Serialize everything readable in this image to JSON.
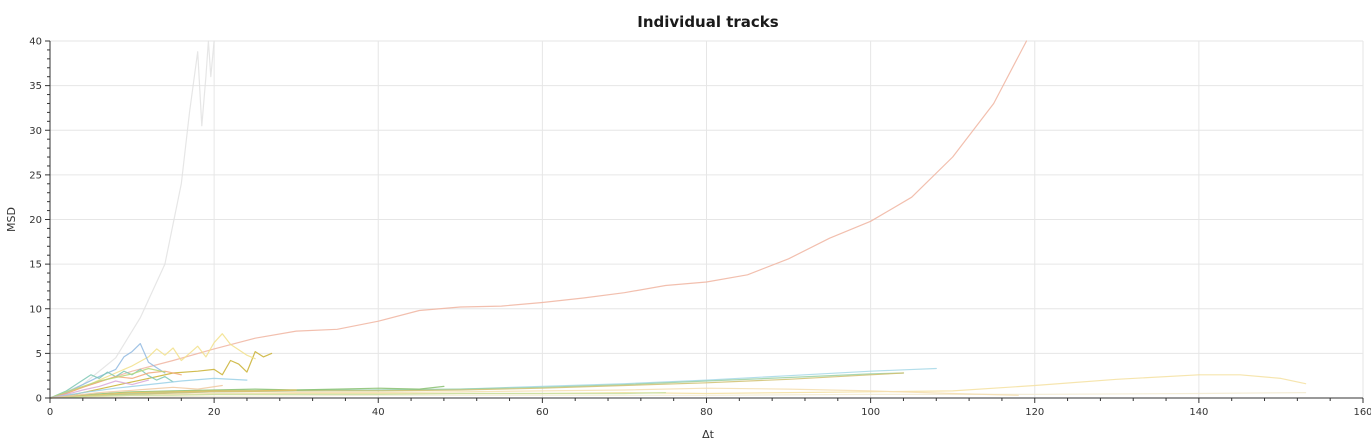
{
  "chart_data": {
    "type": "line",
    "title": "Individual tracks",
    "xlabel": "Δt",
    "ylabel": "MSD",
    "xlim": [
      0,
      160
    ],
    "ylim": [
      0,
      40
    ],
    "xticks": [
      0,
      20,
      40,
      60,
      80,
      100,
      120,
      140,
      160
    ],
    "yticks": [
      0,
      5,
      10,
      15,
      20,
      25,
      30,
      35,
      40
    ],
    "grid": true,
    "legend": "none",
    "series": [
      {
        "color": "#f0b4a0",
        "x": [
          0,
          5,
          10,
          15,
          20,
          25,
          30,
          35,
          40,
          45,
          50,
          55,
          60,
          65,
          70,
          75,
          80,
          85,
          90,
          95,
          100,
          105,
          110,
          115,
          119
        ],
        "y": [
          0,
          1.5,
          3.0,
          4.2,
          5.5,
          6.7,
          7.5,
          7.7,
          8.6,
          9.8,
          10.2,
          10.3,
          10.7,
          11.2,
          11.8,
          12.6,
          13.0,
          13.8,
          15.6,
          17.9,
          19.8,
          22.5,
          27.0,
          33.0,
          40.0
        ]
      },
      {
        "color": "#e2e2e2",
        "x": [
          0,
          4,
          8,
          11,
          14,
          16,
          17,
          18,
          18.5,
          19,
          19.3,
          19.6,
          20
        ],
        "y": [
          0,
          1.5,
          4.5,
          9.0,
          15.0,
          24.0,
          32.0,
          38.8,
          30.5,
          36.0,
          40.0,
          36.0,
          40.0
        ]
      },
      {
        "color": "#f5e1a0",
        "x": [
          0,
          10,
          20,
          30,
          40,
          50,
          60,
          70,
          80,
          90,
          100,
          110,
          120,
          130,
          140,
          145,
          150,
          153
        ],
        "y": [
          0,
          0.3,
          0.4,
          0.5,
          0.5,
          0.5,
          0.5,
          0.6,
          0.5,
          0.6,
          0.7,
          0.8,
          1.4,
          2.1,
          2.6,
          2.6,
          2.2,
          1.6
        ]
      },
      {
        "color": "#f2ead0",
        "x": [
          0,
          20,
          40,
          60,
          80,
          100,
          120,
          140,
          153
        ],
        "y": [
          0,
          0.2,
          0.3,
          0.3,
          0.3,
          0.4,
          0.4,
          0.5,
          0.6
        ]
      },
      {
        "color": "#a6d8e8",
        "x": [
          0,
          10,
          20,
          30,
          40,
          50,
          60,
          70,
          80,
          90,
          100,
          108
        ],
        "y": [
          0,
          0.4,
          0.7,
          0.8,
          0.9,
          1.0,
          1.3,
          1.6,
          2.0,
          2.5,
          3.0,
          3.3
        ]
      },
      {
        "color": "#9bd0a5",
        "x": [
          0,
          10,
          20,
          30,
          40,
          50,
          60,
          70,
          80,
          90,
          100,
          104
        ],
        "y": [
          0,
          0.5,
          0.8,
          0.9,
          0.9,
          1.0,
          1.2,
          1.5,
          1.9,
          2.3,
          2.7,
          2.8
        ]
      },
      {
        "color": "#d0c070",
        "x": [
          0,
          10,
          20,
          30,
          40,
          50,
          60,
          70,
          80,
          90,
          100,
          104
        ],
        "y": [
          0,
          0.4,
          0.7,
          0.8,
          0.8,
          0.9,
          1.1,
          1.4,
          1.7,
          2.1,
          2.6,
          2.8
        ]
      },
      {
        "color": "#f5deb0",
        "x": [
          0,
          10,
          20,
          30,
          40,
          50,
          60,
          70,
          80,
          90,
          100,
          110,
          118
        ],
        "y": [
          0,
          0.3,
          0.5,
          0.6,
          0.6,
          0.7,
          0.8,
          0.9,
          1.1,
          1.0,
          0.8,
          0.5,
          0.3
        ]
      },
      {
        "color": "#c9b030",
        "x": [
          0,
          3,
          6,
          9,
          12,
          15,
          18,
          20,
          21,
          22,
          23,
          24,
          25,
          26,
          27
        ],
        "y": [
          0,
          0.4,
          1.0,
          1.6,
          2.2,
          2.8,
          3.0,
          3.2,
          2.6,
          4.2,
          3.8,
          2.9,
          5.2,
          4.6,
          5.0
        ]
      },
      {
        "color": "#f2e08a",
        "x": [
          0,
          2,
          4,
          6,
          8,
          10,
          12,
          13,
          14,
          15,
          16,
          17,
          18,
          19,
          20,
          21,
          22,
          23,
          24,
          25
        ],
        "y": [
          0,
          0.5,
          1.2,
          2.0,
          2.8,
          3.6,
          4.6,
          5.5,
          4.8,
          5.6,
          4.2,
          5.0,
          5.8,
          4.6,
          6.2,
          7.2,
          6.0,
          5.4,
          4.8,
          4.4
        ]
      },
      {
        "color": "#8fb8e0",
        "x": [
          0,
          2,
          4,
          6,
          8,
          9,
          10,
          11,
          12,
          13,
          14
        ],
        "y": [
          0,
          0.6,
          1.5,
          2.4,
          3.2,
          4.6,
          5.2,
          6.1,
          4.0,
          3.4,
          2.8
        ]
      },
      {
        "color": "#7cc7b4",
        "x": [
          0,
          2,
          3,
          4,
          5,
          6,
          7,
          8,
          9,
          10,
          11,
          12,
          13,
          14,
          15
        ],
        "y": [
          0,
          0.8,
          1.4,
          2.0,
          2.6,
          2.2,
          2.9,
          2.4,
          3.0,
          2.6,
          3.2,
          2.5,
          2.0,
          2.4,
          1.8
        ]
      },
      {
        "color": "#f2a878",
        "x": [
          0,
          2,
          4,
          6,
          8,
          10,
          12,
          14,
          16
        ],
        "y": [
          0,
          0.5,
          1.2,
          1.8,
          2.4,
          2.2,
          2.8,
          3.0,
          2.6
        ]
      },
      {
        "color": "#b8d878",
        "x": [
          0,
          2,
          4,
          6,
          8,
          10,
          12,
          14
        ],
        "y": [
          0,
          0.7,
          1.3,
          1.9,
          2.3,
          2.7,
          3.3,
          2.9
        ]
      },
      {
        "color": "#d8a8d8",
        "x": [
          0,
          2,
          4,
          6,
          8,
          10,
          12
        ],
        "y": [
          0,
          0.4,
          0.9,
          1.3,
          1.9,
          1.5,
          2.0
        ]
      },
      {
        "color": "#88c070",
        "x": [
          0,
          5,
          10,
          15,
          20,
          25,
          30,
          35,
          40,
          45,
          48
        ],
        "y": [
          0,
          0.4,
          0.7,
          0.8,
          0.9,
          1.0,
          0.9,
          1.0,
          1.1,
          1.0,
          1.3
        ]
      },
      {
        "color": "#e6c060",
        "x": [
          0,
          5,
          10,
          15,
          20,
          25,
          30
        ],
        "y": [
          0,
          0.3,
          0.6,
          0.7,
          0.8,
          0.8,
          0.9
        ]
      },
      {
        "color": "#9ad0e6",
        "x": [
          0,
          4,
          8,
          12,
          16,
          20,
          24
        ],
        "y": [
          0,
          0.6,
          1.1,
          1.5,
          1.9,
          2.2,
          2.0
        ]
      },
      {
        "color": "#c8e0a0",
        "x": [
          0,
          5,
          10,
          15,
          20,
          30,
          40,
          50,
          60,
          70,
          75
        ],
        "y": [
          0,
          0.2,
          0.3,
          0.3,
          0.4,
          0.4,
          0.4,
          0.5,
          0.5,
          0.5,
          0.6
        ]
      },
      {
        "color": "#f0c8a0",
        "x": [
          0,
          3,
          6,
          9,
          12,
          15,
          18,
          21
        ],
        "y": [
          0,
          0.3,
          0.6,
          0.8,
          1.0,
          1.2,
          1.0,
          1.4
        ]
      }
    ]
  }
}
